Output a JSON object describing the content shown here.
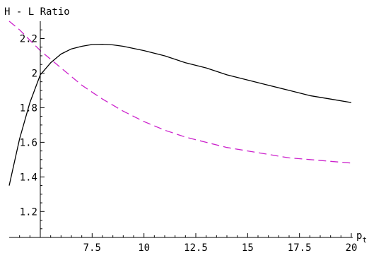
{
  "chart_data": {
    "type": "line",
    "title": "",
    "ylabel": "H - L Ratio",
    "xlabel_main": "p",
    "xlabel_sub": "t",
    "xlim": [
      3.5,
      20
    ],
    "ylim": [
      1.05,
      2.3
    ],
    "y_axis_at_x": 5,
    "x_axis_at_y": 1.05,
    "grid": false,
    "x_ticks": [
      {
        "value": 7.5,
        "label": "7.5"
      },
      {
        "value": 10,
        "label": "10"
      },
      {
        "value": 12.5,
        "label": "12.5"
      },
      {
        "value": 15,
        "label": "15"
      },
      {
        "value": 17.5,
        "label": "17.5"
      },
      {
        "value": 20,
        "label": "20"
      }
    ],
    "x_minor_ticks": [
      4,
      4.5,
      5,
      5.5,
      6,
      6.5,
      7,
      8,
      8.5,
      9,
      9.5,
      10.5,
      11,
      11.5,
      12,
      13,
      13.5,
      14,
      14.5,
      15.5,
      16,
      16.5,
      17,
      18,
      18.5,
      19,
      19.5
    ],
    "y_ticks": [
      {
        "value": 1.2,
        "label": "1.2"
      },
      {
        "value": 1.4,
        "label": "1.4"
      },
      {
        "value": 1.6,
        "label": "1.6"
      },
      {
        "value": 1.8,
        "label": "1.8"
      },
      {
        "value": 2.0,
        "label": "2"
      },
      {
        "value": 2.2,
        "label": "2.2"
      }
    ],
    "y_minor_ticks": [
      1.1,
      1.15,
      1.25,
      1.3,
      1.35,
      1.45,
      1.5,
      1.55,
      1.65,
      1.7,
      1.75,
      1.85,
      1.9,
      1.95,
      2.05,
      2.1,
      2.15,
      2.25
    ],
    "series": [
      {
        "style": "solid",
        "color": "#000000",
        "x": [
          3.5,
          4,
          4.5,
          5,
          5.5,
          6,
          6.5,
          7,
          7.5,
          8,
          8.5,
          9,
          10,
          11,
          12,
          13,
          14,
          15,
          16,
          17,
          18,
          19,
          20
        ],
        "y": [
          1.35,
          1.62,
          1.83,
          1.99,
          2.06,
          2.11,
          2.14,
          2.155,
          2.165,
          2.167,
          2.163,
          2.155,
          2.13,
          2.1,
          2.06,
          2.03,
          1.99,
          1.96,
          1.93,
          1.9,
          1.87,
          1.85,
          1.83
        ]
      },
      {
        "style": "dashed",
        "color": "#cc22cc",
        "x": [
          3.5,
          4,
          4.5,
          5,
          5.5,
          6,
          6.5,
          7,
          7.5,
          8,
          9,
          10,
          11,
          12,
          13,
          14,
          15,
          16,
          17,
          18,
          19,
          20
        ],
        "y": [
          2.3,
          2.25,
          2.19,
          2.13,
          2.08,
          2.03,
          1.98,
          1.93,
          1.89,
          1.85,
          1.78,
          1.72,
          1.67,
          1.63,
          1.6,
          1.57,
          1.55,
          1.53,
          1.51,
          1.5,
          1.49,
          1.48
        ]
      }
    ]
  }
}
